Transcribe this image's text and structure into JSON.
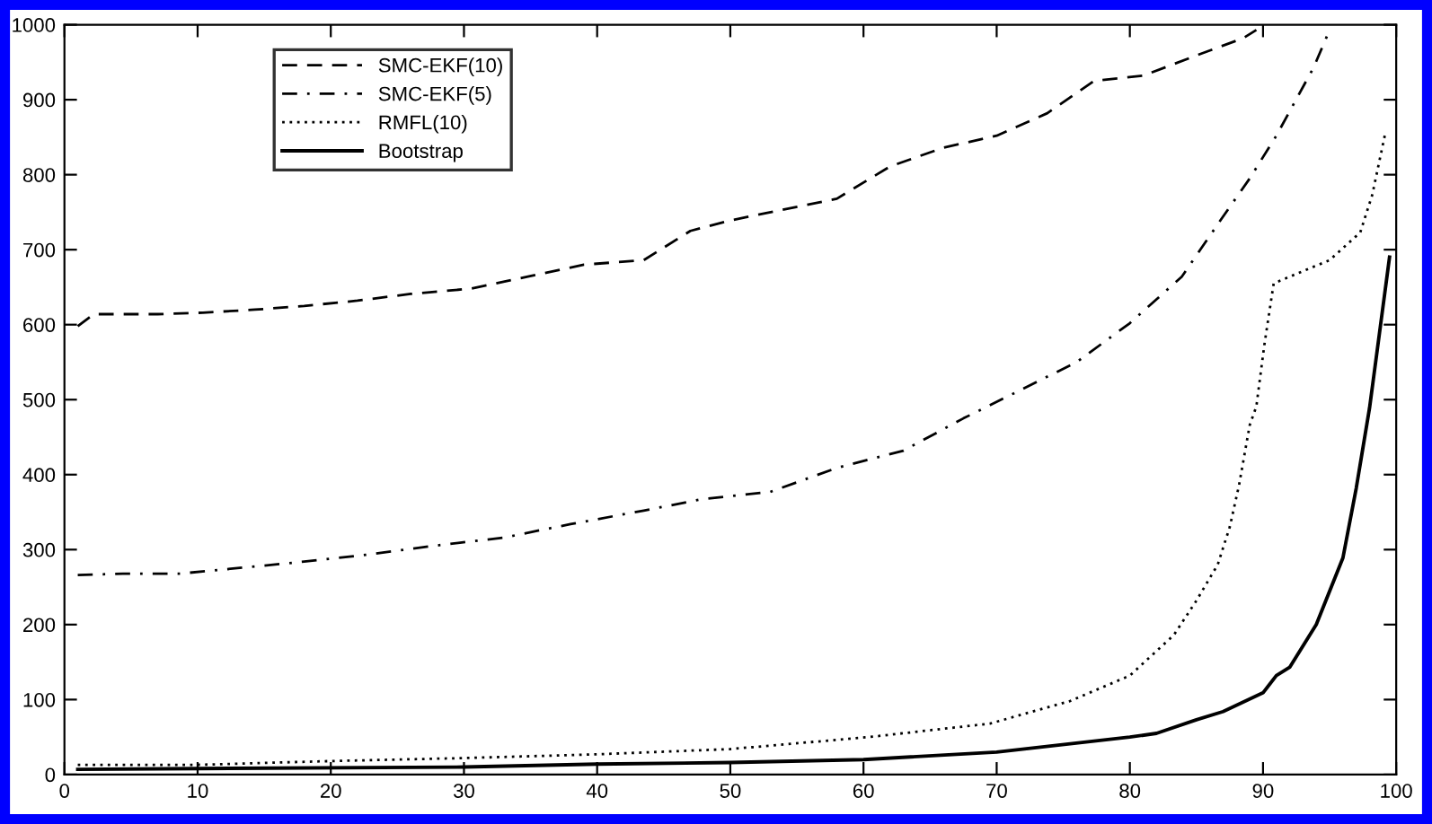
{
  "chart_data": {
    "type": "line",
    "xlim": [
      0,
      100
    ],
    "ylim": [
      0,
      1000
    ],
    "xticks": [
      0,
      10,
      20,
      30,
      40,
      50,
      60,
      70,
      80,
      90,
      100
    ],
    "yticks": [
      0,
      100,
      200,
      300,
      400,
      500,
      600,
      700,
      800,
      900,
      1000
    ],
    "grid": false,
    "legend": "top left",
    "marker": "none",
    "series": [
      {
        "name": "SMC-EKF(10)",
        "color": "#000000",
        "line_style": "dashed",
        "x": [
          1,
          2.2,
          7,
          10.4,
          14.3,
          18,
          22,
          26,
          30.5,
          34.8,
          39,
          43.5,
          47,
          50,
          58,
          62,
          66,
          70,
          73.8,
          77.3,
          81,
          85,
          88.5,
          89.5
        ],
        "values": [
          598,
          614,
          614,
          616,
          620,
          625,
          632,
          641,
          648,
          664,
          680,
          686,
          725,
          739,
          768,
          811,
          836,
          852,
          882,
          925,
          932,
          959,
          982,
          993
        ]
      },
      {
        "name": "SMC-EKF(5)",
        "color": "#000000",
        "line_style": "dashdot",
        "x": [
          1,
          4.4,
          8.7,
          14,
          18,
          22.6,
          28.6,
          33,
          38,
          43.5,
          47.8,
          53,
          58,
          63,
          67.5,
          76,
          80,
          83.9,
          86.8,
          89,
          91,
          93.8,
          95
        ],
        "values": [
          266,
          268,
          268,
          277,
          284,
          293,
          307,
          316,
          334,
          352,
          367,
          377,
          409,
          432,
          475,
          550,
          602,
          664,
          739,
          795,
          852,
          943,
          993
        ]
      },
      {
        "name": "RMFL(10)",
        "color": "#000000",
        "line_style": "dotted",
        "x": [
          1,
          10,
          20,
          30,
          40,
          50,
          60.4,
          69.5,
          75.5,
          80,
          83.3,
          85,
          86.6,
          87.5,
          88.2,
          89,
          89.5,
          90.1,
          90.8,
          92,
          95,
          97.3,
          98.2,
          99.2
        ],
        "values": [
          13,
          13,
          18,
          22,
          27,
          34,
          50,
          68,
          98,
          132,
          186,
          232,
          280,
          330,
          386,
          466,
          491,
          573,
          655,
          664,
          686,
          723,
          773,
          857
        ]
      },
      {
        "name": "Bootstrap",
        "color": "#000000",
        "line_style": "solid",
        "x": [
          1,
          10,
          30,
          40,
          50,
          60,
          70,
          80,
          82,
          85,
          87,
          90,
          91,
          92,
          94,
          96,
          97,
          98,
          99.5
        ],
        "values": [
          7,
          8,
          10,
          14,
          16,
          20,
          30,
          50,
          55,
          73,
          84,
          109,
          132,
          143,
          200,
          289,
          382,
          489,
          690
        ]
      }
    ]
  }
}
